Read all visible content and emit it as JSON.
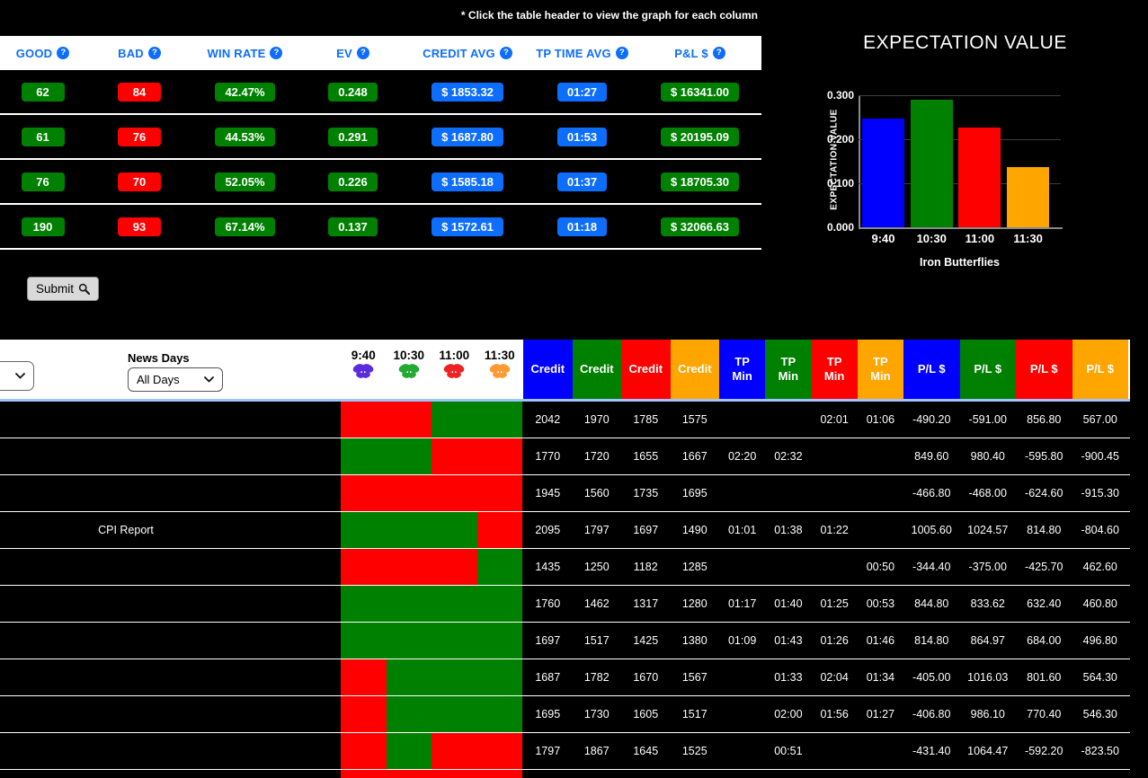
{
  "page": {
    "note": "* Click the table header to view the graph for each column"
  },
  "colors": {
    "accent_blue": "#0d6efd",
    "pure_blue": "#0000ff",
    "green": "#008000",
    "red": "#ff0000",
    "orange": "#ffa500",
    "header_border_blue": "#9ec5fe",
    "column_colors": [
      "#0000ff",
      "#008000",
      "#ff0000",
      "#ffa500"
    ],
    "butterfly_colors": [
      "#5b2be0",
      "#22aa33",
      "#ee2222",
      "#ff9933"
    ]
  },
  "summary_table": {
    "help_glyph": "?",
    "headers": [
      "GOOD",
      "BAD",
      "WIN RATE",
      "EV",
      "CREDIT AVG",
      "TP TIME AVG",
      "P&L $"
    ],
    "rows": [
      {
        "good": "62",
        "bad": "84",
        "win_rate": "42.47%",
        "ev": "0.248",
        "credit_avg": "$ 1853.32",
        "tp_time_avg": "01:27",
        "pl": "$ 16341.00"
      },
      {
        "good": "61",
        "bad": "76",
        "win_rate": "44.53%",
        "ev": "0.291",
        "credit_avg": "$ 1687.80",
        "tp_time_avg": "01:53",
        "pl": "$ 20195.09"
      },
      {
        "good": "76",
        "bad": "70",
        "win_rate": "52.05%",
        "ev": "0.226",
        "credit_avg": "$ 1585.18",
        "tp_time_avg": "01:37",
        "pl": "$ 18705.30"
      },
      {
        "good": "190",
        "bad": "93",
        "win_rate": "67.14%",
        "ev": "0.137",
        "credit_avg": "$ 1572.61",
        "tp_time_avg": "01:18",
        "pl": "$ 32066.63"
      }
    ]
  },
  "submit": {
    "label": "Submit",
    "icon": "magnifier"
  },
  "chart_data": {
    "type": "bar",
    "title": "EXPECTATION VALUE",
    "ylabel": "EXPECTATION VALUE",
    "xlabel": "Iron Butterflies",
    "categories": [
      "9:40",
      "10:30",
      "11:00",
      "11:30"
    ],
    "values": [
      0.248,
      0.291,
      0.226,
      0.137
    ],
    "bar_colors": [
      "#0000ff",
      "#008000",
      "#ff0000",
      "#ffa500"
    ],
    "ylim": [
      0,
      0.3
    ],
    "yticks": [
      0,
      0.1,
      0.2,
      0.3
    ],
    "ytick_labels": [
      "0.000",
      "0.100",
      "0.200",
      "0.300"
    ],
    "grid": true,
    "legend": false
  },
  "bottom_table": {
    "news_days_label": "News Days",
    "news_days_value": "All Days",
    "time_headers": [
      "9:40",
      "10:30",
      "11:00",
      "11:30"
    ],
    "value_header_groups": [
      "Credit",
      "TP Min",
      "P/L $"
    ],
    "rows": [
      {
        "news": "",
        "results": [
          "loss",
          "loss",
          "win",
          "win"
        ],
        "credits": [
          "2042",
          "1970",
          "1785",
          "1575"
        ],
        "tp": [
          "",
          "",
          "02:01",
          "01:06"
        ],
        "pl": [
          "-490.20",
          "-591.00",
          "856.80",
          "567.00"
        ]
      },
      {
        "news": "",
        "results": [
          "win",
          "win",
          "loss",
          "loss"
        ],
        "credits": [
          "1770",
          "1720",
          "1655",
          "1667"
        ],
        "tp": [
          "02:20",
          "02:32",
          "",
          ""
        ],
        "pl": [
          "849.60",
          "980.40",
          "-595.80",
          "-900.45"
        ]
      },
      {
        "news": "",
        "results": [
          "loss",
          "loss",
          "loss",
          "loss"
        ],
        "credits": [
          "1945",
          "1560",
          "1735",
          "1695"
        ],
        "tp": [
          "",
          "",
          "",
          ""
        ],
        "pl": [
          "-466.80",
          "-468.00",
          "-624.60",
          "-915.30"
        ]
      },
      {
        "news": "CPI Report",
        "results": [
          "win",
          "win",
          "win",
          "loss"
        ],
        "credits": [
          "2095",
          "1797",
          "1697",
          "1490"
        ],
        "tp": [
          "01:01",
          "01:38",
          "01:22",
          ""
        ],
        "pl": [
          "1005.60",
          "1024.57",
          "814.80",
          "-804.60"
        ]
      },
      {
        "news": "",
        "results": [
          "loss",
          "loss",
          "loss",
          "win"
        ],
        "credits": [
          "1435",
          "1250",
          "1182",
          "1285"
        ],
        "tp": [
          "",
          "",
          "",
          "00:50"
        ],
        "pl": [
          "-344.40",
          "-375.00",
          "-425.70",
          "462.60"
        ]
      },
      {
        "news": "",
        "results": [
          "win",
          "win",
          "win",
          "win"
        ],
        "credits": [
          "1760",
          "1462",
          "1317",
          "1280"
        ],
        "tp": [
          "01:17",
          "01:40",
          "01:25",
          "00:53"
        ],
        "pl": [
          "844.80",
          "833.62",
          "632.40",
          "460.80"
        ]
      },
      {
        "news": "",
        "results": [
          "win",
          "win",
          "win",
          "win"
        ],
        "credits": [
          "1697",
          "1517",
          "1425",
          "1380"
        ],
        "tp": [
          "01:09",
          "01:43",
          "01:26",
          "01:46"
        ],
        "pl": [
          "814.80",
          "864.97",
          "684.00",
          "496.80"
        ]
      },
      {
        "news": "",
        "results": [
          "loss",
          "win",
          "win",
          "win"
        ],
        "credits": [
          "1687",
          "1782",
          "1670",
          "1567"
        ],
        "tp": [
          "",
          "01:33",
          "02:04",
          "01:34"
        ],
        "pl": [
          "-405.00",
          "1016.03",
          "801.60",
          "564.30"
        ]
      },
      {
        "news": "",
        "results": [
          "loss",
          "win",
          "win",
          "win"
        ],
        "credits": [
          "1695",
          "1730",
          "1605",
          "1517"
        ],
        "tp": [
          "",
          "02:00",
          "01:56",
          "01:27"
        ],
        "pl": [
          "-406.80",
          "986.10",
          "770.40",
          "546.30"
        ]
      },
      {
        "news": "",
        "results": [
          "loss",
          "win",
          "loss",
          "loss"
        ],
        "credits": [
          "1797",
          "1867",
          "1645",
          "1525"
        ],
        "tp": [
          "",
          "00:51",
          "",
          ""
        ],
        "pl": [
          "-431.40",
          "1064.47",
          "-592.20",
          "-823.50"
        ]
      },
      {
        "news": "",
        "results": [
          "loss",
          "loss",
          "loss",
          "loss"
        ],
        "credits": [
          "",
          "",
          "",
          ""
        ],
        "tp": [
          "",
          "",
          "",
          ""
        ],
        "pl": [
          "",
          "",
          "",
          ""
        ]
      }
    ]
  }
}
